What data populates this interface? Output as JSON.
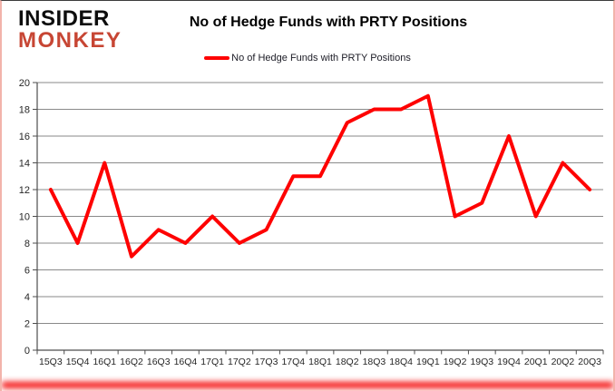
{
  "logo": {
    "line1": "INSIDER",
    "line2": "MONKEY"
  },
  "header": {
    "title": "No of Hedge Funds with PRTY Positions"
  },
  "legend": {
    "label": "No of Hedge Funds with PRTY Positions"
  },
  "colors": {
    "series": "#fe0101",
    "logo_text": "#0d0d0d",
    "logo_accent": "#c74634",
    "gridline": "#8a8a8a",
    "axis": "#4d4d4d",
    "tick_text": "#262626",
    "border_pink": "#f2b3ab",
    "bottom_glow": "#f40808"
  },
  "chart_data": {
    "type": "line",
    "title": "No of Hedge Funds with PRTY Positions",
    "categories": [
      "15Q3",
      "15Q4",
      "16Q1",
      "16Q2",
      "16Q3",
      "16Q4",
      "17Q1",
      "17Q2",
      "17Q3",
      "17Q4",
      "18Q1",
      "18Q2",
      "18Q3",
      "18Q4",
      "19Q1",
      "19Q2",
      "19Q3",
      "19Q4",
      "20Q1",
      "20Q2",
      "20Q3"
    ],
    "values": [
      12,
      8,
      14,
      7,
      9,
      8,
      10,
      8,
      9,
      13,
      13,
      17,
      18,
      18,
      19,
      10,
      11,
      16,
      10,
      14,
      12
    ],
    "xlabel": "",
    "ylabel": "",
    "ylim": [
      0,
      20
    ],
    "ytick_step": 2,
    "grid": true,
    "legend_position": "top",
    "series_name": "No of Hedge Funds with PRTY Positions"
  }
}
